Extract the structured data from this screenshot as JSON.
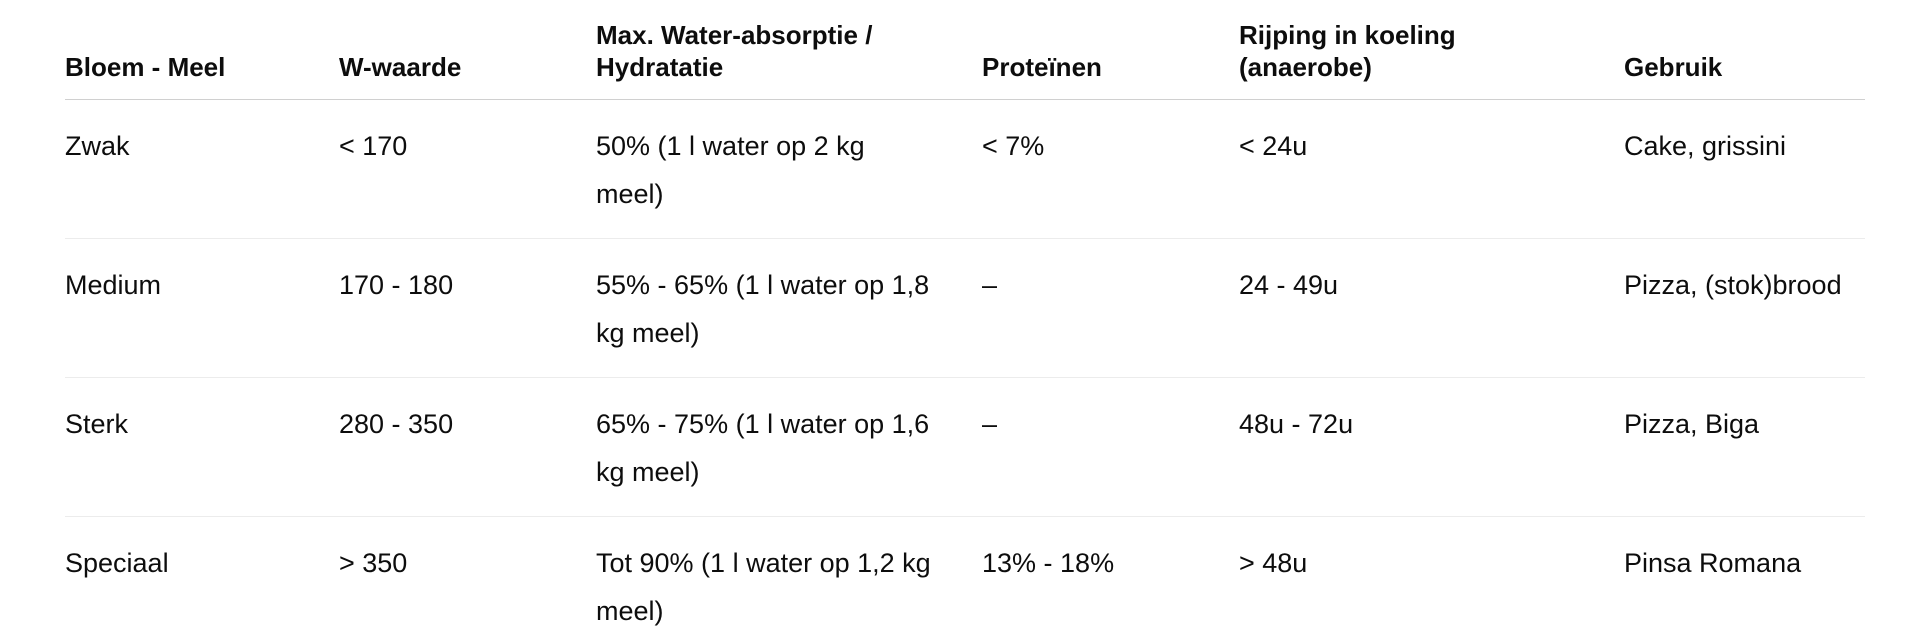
{
  "table": {
    "columns": [
      "Bloem - Meel",
      "W-waarde",
      "Max. Water-absorptie / Hydratatie",
      "Proteïnen",
      "Rijping in koeling (anaerobe)",
      "Gebruik"
    ],
    "rows": [
      [
        "Zwak",
        "< 170",
        "50% (1 l water op 2 kg meel)",
        "< 7%",
        "< 24u",
        "Cake, grissini"
      ],
      [
        "Medium",
        "170 - 180",
        "55% - 65% (1 l water op 1,8 kg meel)",
        "–",
        "24 - 49u",
        "Pizza, (stok)brood"
      ],
      [
        "Sterk",
        "280 - 350",
        "65% - 75% (1 l water op 1,6 kg meel)",
        "–",
        "48u - 72u",
        "Pizza, Biga"
      ],
      [
        "Speciaal",
        "> 350",
        "Tot 90% (1 l water op 1,2 kg meel)",
        "13% - 18%",
        "> 48u",
        "Pinsa Romana"
      ]
    ]
  }
}
